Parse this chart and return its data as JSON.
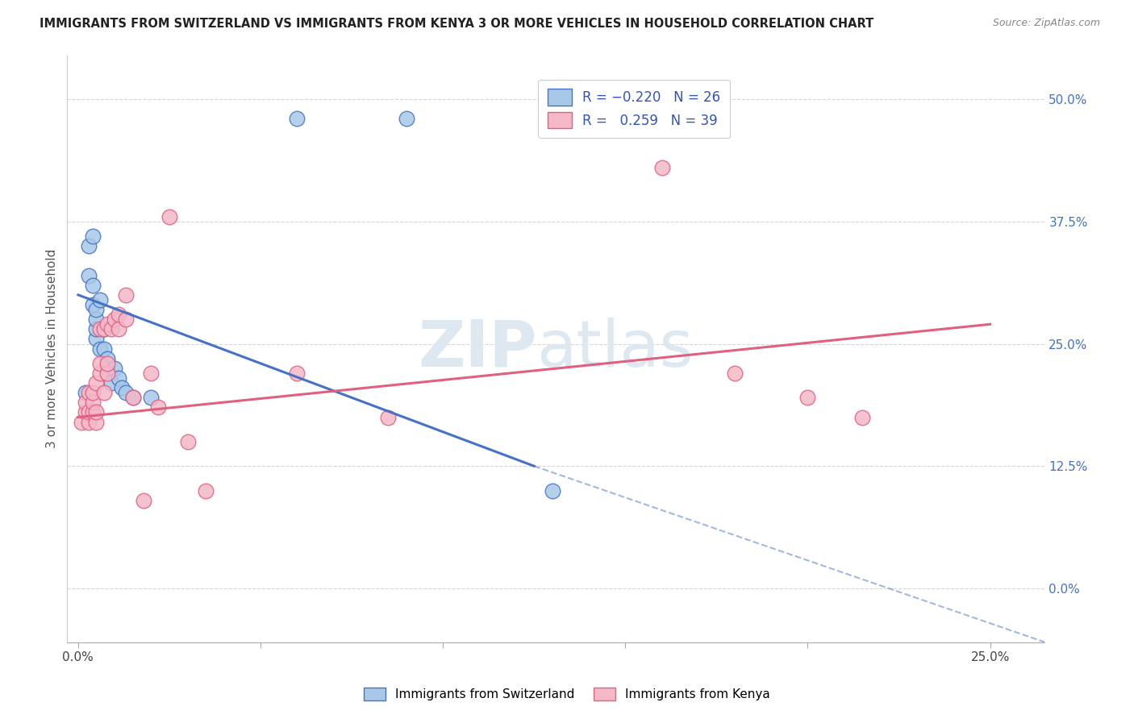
{
  "title": "IMMIGRANTS FROM SWITZERLAND VS IMMIGRANTS FROM KENYA 3 OR MORE VEHICLES IN HOUSEHOLD CORRELATION CHART",
  "source": "Source: ZipAtlas.com",
  "ylabel": "3 or more Vehicles in Household",
  "ytick_labels": [
    "0.0%",
    "12.5%",
    "25.0%",
    "37.5%",
    "50.0%"
  ],
  "ytick_values": [
    0.0,
    0.125,
    0.25,
    0.375,
    0.5
  ],
  "xtick_labels": [
    "0.0%",
    "",
    "",
    "",
    "",
    "25.0%"
  ],
  "xtick_values": [
    0.0,
    0.05,
    0.1,
    0.15,
    0.2,
    0.25
  ],
  "xlim": [
    -0.003,
    0.265
  ],
  "ylim": [
    -0.055,
    0.545
  ],
  "watermark_zip": "ZIP",
  "watermark_atlas": "atlas",
  "color_swiss": "#a8c8e8",
  "color_kenya": "#f4b8c8",
  "color_swiss_line": "#4472c4",
  "color_kenya_line": "#e06080",
  "background": "#ffffff",
  "swiss_x": [
    0.002,
    0.003,
    0.003,
    0.004,
    0.004,
    0.004,
    0.005,
    0.005,
    0.005,
    0.005,
    0.006,
    0.006,
    0.007,
    0.007,
    0.008,
    0.008,
    0.009,
    0.01,
    0.011,
    0.012,
    0.013,
    0.015,
    0.02,
    0.06,
    0.09,
    0.13
  ],
  "swiss_y": [
    0.2,
    0.32,
    0.35,
    0.29,
    0.31,
    0.36,
    0.255,
    0.265,
    0.275,
    0.285,
    0.245,
    0.295,
    0.245,
    0.265,
    0.225,
    0.235,
    0.21,
    0.225,
    0.215,
    0.205,
    0.2,
    0.195,
    0.195,
    0.48,
    0.48,
    0.1
  ],
  "kenya_x": [
    0.001,
    0.002,
    0.002,
    0.003,
    0.003,
    0.003,
    0.004,
    0.004,
    0.004,
    0.005,
    0.005,
    0.005,
    0.006,
    0.006,
    0.006,
    0.007,
    0.007,
    0.008,
    0.008,
    0.008,
    0.009,
    0.01,
    0.011,
    0.011,
    0.013,
    0.013,
    0.015,
    0.018,
    0.02,
    0.022,
    0.025,
    0.03,
    0.035,
    0.06,
    0.085,
    0.16,
    0.18,
    0.2,
    0.215
  ],
  "kenya_y": [
    0.17,
    0.18,
    0.19,
    0.17,
    0.18,
    0.2,
    0.18,
    0.19,
    0.2,
    0.17,
    0.18,
    0.21,
    0.22,
    0.23,
    0.265,
    0.2,
    0.265,
    0.22,
    0.23,
    0.27,
    0.265,
    0.275,
    0.265,
    0.28,
    0.275,
    0.3,
    0.195,
    0.09,
    0.22,
    0.185,
    0.38,
    0.15,
    0.1,
    0.22,
    0.175,
    0.43,
    0.22,
    0.195,
    0.175
  ],
  "swiss_line_x0": 0.0,
  "swiss_line_y0": 0.3,
  "swiss_line_x1": 0.125,
  "swiss_line_y1": 0.125,
  "swiss_line_dash_x1": 0.265,
  "swiss_line_dash_y1": -0.055,
  "kenya_line_x0": 0.0,
  "kenya_line_y0": 0.175,
  "kenya_line_x1": 0.25,
  "kenya_line_y1": 0.27
}
